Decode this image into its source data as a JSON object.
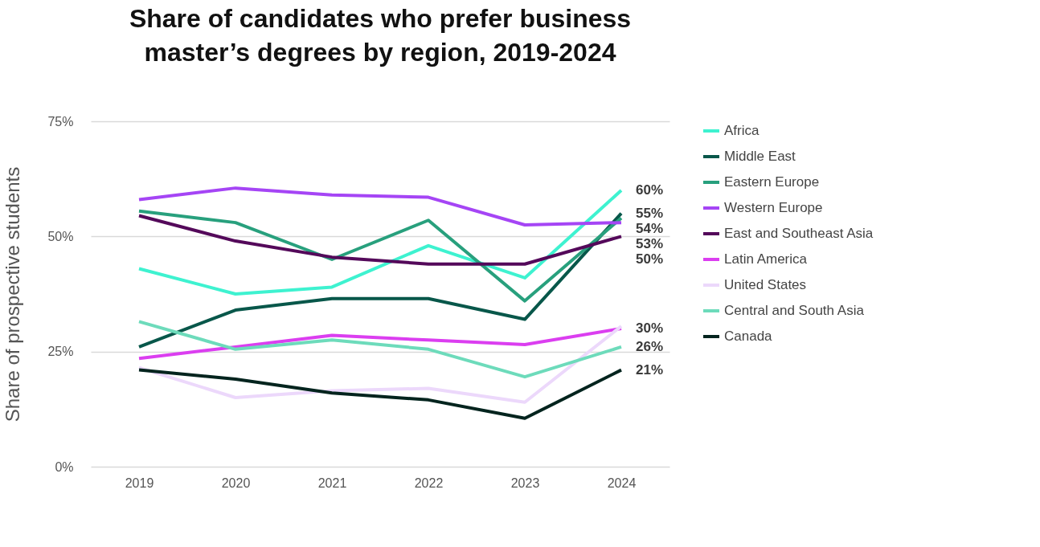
{
  "chart_data": {
    "type": "line",
    "title": "Share of candidates who prefer business master’s degrees by region, 2019-2024",
    "ylabel": "Share of prospective students",
    "categories": [
      "2019",
      "2020",
      "2021",
      "2022",
      "2023",
      "2024"
    ],
    "ylim": [
      0,
      75
    ],
    "yticks": [
      {
        "value": 0,
        "label": "0%"
      },
      {
        "value": 25,
        "label": "25%"
      },
      {
        "value": 50,
        "label": "50%"
      },
      {
        "value": 75,
        "label": "75%"
      }
    ],
    "grid": "y",
    "legend": "right",
    "marker": "none",
    "line_style": "solid",
    "series": [
      {
        "name": "Africa",
        "color": "#3ef2d0",
        "values": [
          43,
          37.5,
          39,
          48,
          41,
          60
        ],
        "value_labels": [
          null,
          null,
          null,
          null,
          null,
          "60%"
        ]
      },
      {
        "name": "Middle East",
        "color": "#08574a",
        "values": [
          26,
          34,
          36.5,
          36.5,
          32,
          55
        ],
        "value_labels": [
          null,
          null,
          null,
          null,
          null,
          "55%"
        ]
      },
      {
        "name": "Eastern Europe",
        "color": "#28a07d",
        "values": [
          55.5,
          53,
          45,
          53.5,
          36,
          54
        ],
        "value_labels": [
          null,
          null,
          null,
          null,
          null,
          "54%"
        ]
      },
      {
        "name": "Western Europe",
        "color": "#a545f5",
        "values": [
          58,
          60.5,
          59,
          58.5,
          52.5,
          53
        ],
        "value_labels": [
          null,
          null,
          null,
          null,
          null,
          "53%"
        ]
      },
      {
        "name": "East and Southeast Asia",
        "color": "#54095a",
        "values": [
          54.5,
          49,
          45.5,
          44,
          44,
          50
        ],
        "value_labels": [
          null,
          null,
          null,
          null,
          null,
          "50%"
        ]
      },
      {
        "name": "Latin America",
        "color": "#db3ef0",
        "values": [
          23.5,
          26,
          28.5,
          27.5,
          26.5,
          30
        ],
        "value_labels": [
          null,
          null,
          null,
          null,
          null,
          "30%"
        ]
      },
      {
        "name": "United States",
        "color": "#ecd8fb",
        "values": [
          21.5,
          15,
          16.5,
          17,
          14,
          30.5
        ]
      },
      {
        "name": "Central and South Asia",
        "color": "#6ddbbb",
        "values": [
          31.5,
          25.5,
          27.5,
          25.5,
          19.5,
          26
        ],
        "value_labels": [
          null,
          null,
          null,
          null,
          null,
          "26%"
        ]
      },
      {
        "name": "Canada",
        "color": "#03241e",
        "values": [
          21,
          19,
          16,
          14.5,
          10.5,
          21
        ],
        "value_labels": [
          null,
          null,
          null,
          null,
          null,
          "21%"
        ]
      }
    ]
  }
}
